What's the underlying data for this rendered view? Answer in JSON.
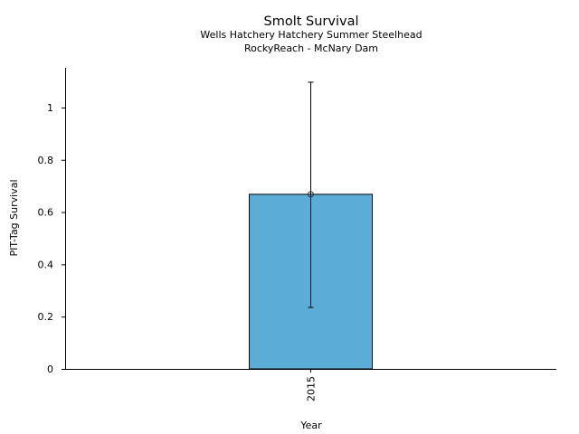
{
  "chart_data": {
    "type": "bar",
    "title": "Smolt Survival",
    "subtitle_lines": [
      "Wells Hatchery Hatchery Summer Steelhead",
      "RockyReach - McNary Dam"
    ],
    "xlabel": "Year",
    "ylabel": "PIT-Tag Survival",
    "categories": [
      "2015"
    ],
    "values": [
      0.668
    ],
    "error_low": [
      0.235
    ],
    "error_high": [
      1.097
    ],
    "ylim": [
      0,
      1.152
    ],
    "yticks": [
      0,
      0.2,
      0.4,
      0.6,
      0.8,
      1
    ],
    "ytick_labels": [
      "0",
      "0.2",
      "0.4",
      "0.6",
      "0.8",
      "1"
    ],
    "grid": false,
    "bar_color": "#5bacd6"
  }
}
